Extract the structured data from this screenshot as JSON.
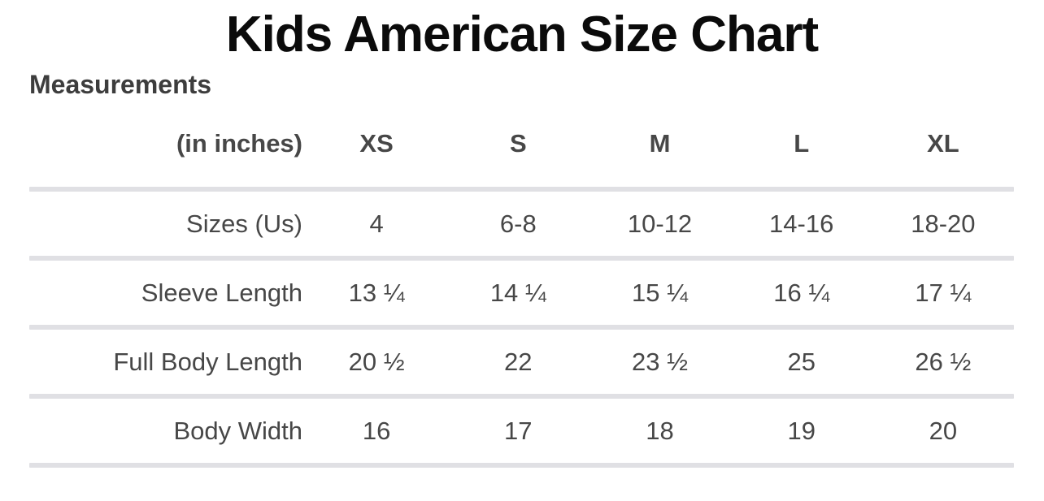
{
  "page": {
    "title": "Kids American Size Chart",
    "section_heading": "Measurements"
  },
  "chart_data": {
    "type": "table",
    "title": "Kids American Size Chart",
    "unit_label": "(in inches)",
    "columns": [
      "XS",
      "S",
      "M",
      "L",
      "XL"
    ],
    "rows": [
      {
        "label": "Sizes (Us)",
        "values": [
          "4",
          "6-8",
          "10-12",
          "14-16",
          "18-20"
        ]
      },
      {
        "label": "Sleeve Length",
        "values": [
          "13 ¼",
          "14 ¼",
          "15 ¼",
          "16 ¼",
          "17 ¼"
        ]
      },
      {
        "label": "Full Body Length",
        "values": [
          "20 ½",
          "22",
          "23 ½",
          "25",
          "26 ½"
        ]
      },
      {
        "label": "Body Width",
        "values": [
          "16",
          "17",
          "18",
          "19",
          "20"
        ]
      }
    ],
    "layout": {
      "label_column_align": "right",
      "value_align": "center",
      "grid": "horizontal-rules-only",
      "header_bold": true
    }
  },
  "colors": {
    "background": "#ffffff",
    "title_text": "#0b0b0b",
    "heading_text": "#3d3d3d",
    "table_text": "#474747",
    "divider": "#e0e0e4"
  }
}
